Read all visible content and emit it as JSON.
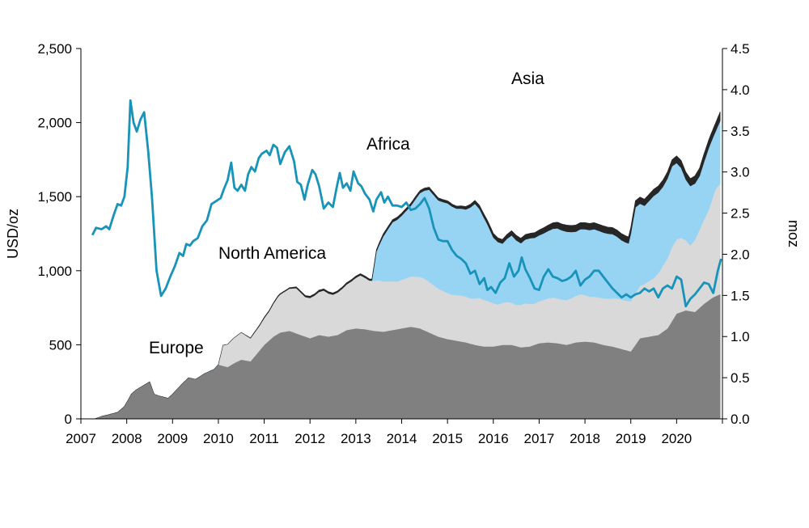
{
  "chart_data": {
    "type": "area",
    "xlabel": "",
    "x_ticks": [
      "2007",
      "2008",
      "2009",
      "2010",
      "2011",
      "2012",
      "2013",
      "2014",
      "2015",
      "2016",
      "2017",
      "2018",
      "2019",
      "2020"
    ],
    "xlim": [
      2007.0,
      2021.0
    ],
    "y_left": {
      "label": "USD/oz",
      "ticks": [
        "0",
        "500",
        "1,000",
        "1,500",
        "2,000",
        "2,500"
      ],
      "lim": [
        0,
        2500
      ]
    },
    "y_right": {
      "label": "moz",
      "ticks": [
        "0.0",
        "0.5",
        "1.0",
        "1.5",
        "2.0",
        "2.5",
        "3.0",
        "3.5",
        "4.0",
        "4.5"
      ],
      "lim": [
        0,
        4.5
      ]
    },
    "colors": {
      "europe": "#808080",
      "north_america": "#d9d9d9",
      "asia": "#97d4f4",
      "africa": "#262626",
      "price": "#1893b9"
    },
    "annotations": [
      "Europe",
      "North America",
      "Asia",
      "Africa"
    ],
    "stack_series": [
      {
        "name": "Europe",
        "color": "#808080",
        "y_axis": "right",
        "x": [
          2007.3,
          2007.45,
          2007.6,
          2007.8,
          2007.95,
          2008.1,
          2008.2,
          2008.35,
          2008.5,
          2008.6,
          2008.7,
          2008.9,
          2009.0,
          2009.2,
          2009.35,
          2009.5,
          2009.7,
          2009.9,
          2010.0,
          2010.2,
          2010.35,
          2010.5,
          2010.7,
          2010.85,
          2011.0,
          2011.2,
          2011.35,
          2011.55,
          2011.7,
          2011.9,
          2012.0,
          2012.2,
          2012.4,
          2012.6,
          2012.8,
          2013.0,
          2013.2,
          2013.4,
          2013.6,
          2013.8,
          2014.0,
          2014.2,
          2014.4,
          2014.6,
          2014.8,
          2015.0,
          2015.2,
          2015.4,
          2015.6,
          2015.8,
          2016.0,
          2016.2,
          2016.4,
          2016.6,
          2016.8,
          2017.0,
          2017.2,
          2017.4,
          2017.6,
          2017.8,
          2018.0,
          2018.2,
          2018.4,
          2018.6,
          2018.8,
          2019.0,
          2019.2,
          2019.4,
          2019.6,
          2019.8,
          2020.0,
          2020.2,
          2020.4,
          2020.6,
          2020.8,
          2020.97
        ],
        "y": [
          0.0,
          0.03,
          0.05,
          0.08,
          0.15,
          0.3,
          0.35,
          0.4,
          0.45,
          0.3,
          0.28,
          0.25,
          0.3,
          0.42,
          0.5,
          0.48,
          0.55,
          0.6,
          0.66,
          0.63,
          0.68,
          0.72,
          0.7,
          0.8,
          0.9,
          1.0,
          1.05,
          1.07,
          1.04,
          1.0,
          0.98,
          1.02,
          1.0,
          1.02,
          1.08,
          1.1,
          1.09,
          1.07,
          1.06,
          1.08,
          1.1,
          1.12,
          1.1,
          1.05,
          1.0,
          0.97,
          0.95,
          0.93,
          0.9,
          0.88,
          0.88,
          0.9,
          0.9,
          0.87,
          0.88,
          0.92,
          0.93,
          0.92,
          0.9,
          0.93,
          0.94,
          0.93,
          0.9,
          0.88,
          0.85,
          0.82,
          0.98,
          1.0,
          1.02,
          1.1,
          1.28,
          1.32,
          1.3,
          1.4,
          1.48,
          1.52
        ]
      },
      {
        "name": "North America",
        "color": "#d9d9d9",
        "y_axis": "right",
        "x": [
          2010.0,
          2010.1,
          2010.3,
          2010.5,
          2010.7,
          2010.9,
          2011.1,
          2011.3,
          2011.5,
          2011.7,
          2011.9,
          2012.1,
          2012.3,
          2012.5,
          2012.7,
          2012.9,
          2013.1,
          2013.3,
          2013.5,
          2013.7,
          2013.9,
          2014.1,
          2014.3,
          2014.5,
          2014.7,
          2014.9,
          2015.1,
          2015.3,
          2015.5,
          2015.7,
          2015.9,
          2016.1,
          2016.3,
          2016.5,
          2016.7,
          2016.9,
          2017.1,
          2017.3,
          2017.5,
          2017.7,
          2017.9,
          2018.1,
          2018.3,
          2018.5,
          2018.7,
          2018.9,
          2019.1,
          2019.3,
          2019.5,
          2019.7,
          2019.9,
          2020.1,
          2020.3,
          2020.5,
          2020.7,
          2020.85,
          2020.97
        ],
        "y": [
          0.0,
          0.25,
          0.3,
          0.33,
          0.28,
          0.3,
          0.35,
          0.45,
          0.5,
          0.55,
          0.48,
          0.5,
          0.55,
          0.5,
          0.53,
          0.58,
          0.65,
          0.6,
          0.62,
          0.6,
          0.58,
          0.6,
          0.62,
          0.63,
          0.6,
          0.57,
          0.55,
          0.56,
          0.55,
          0.58,
          0.55,
          0.5,
          0.52,
          0.5,
          0.53,
          0.5,
          0.52,
          0.55,
          0.54,
          0.55,
          0.58,
          0.55,
          0.56,
          0.57,
          0.6,
          0.6,
          0.62,
          0.65,
          0.7,
          0.8,
          0.9,
          0.9,
          0.8,
          0.95,
          1.1,
          1.3,
          1.35
        ]
      },
      {
        "name": "Asia",
        "color": "#97d4f4",
        "y_axis": "right",
        "x": [
          2013.35,
          2013.45,
          2013.6,
          2013.8,
          2014.0,
          2014.2,
          2014.4,
          2014.6,
          2014.8,
          2015.0,
          2015.2,
          2015.4,
          2015.6,
          2015.7,
          2015.85,
          2016.0,
          2016.2,
          2016.4,
          2016.6,
          2016.8,
          2017.0,
          2017.2,
          2017.4,
          2017.6,
          2017.8,
          2018.0,
          2018.2,
          2018.4,
          2018.6,
          2018.8,
          2018.95,
          2019.1,
          2019.3,
          2019.5,
          2019.7,
          2019.9,
          2020.0,
          2020.1,
          2020.2,
          2020.3,
          2020.5,
          2020.7,
          2020.85,
          2020.97
        ],
        "y": [
          0.0,
          0.35,
          0.55,
          0.72,
          0.78,
          0.86,
          1.02,
          1.12,
          1.07,
          1.09,
          1.05,
          1.06,
          1.15,
          1.08,
          0.95,
          0.8,
          0.72,
          0.82,
          0.75,
          0.8,
          0.8,
          0.82,
          0.85,
          0.83,
          0.78,
          0.8,
          0.82,
          0.8,
          0.78,
          0.72,
          0.7,
          1.05,
          0.95,
          1.0,
          0.96,
          0.98,
          0.93,
          0.85,
          0.74,
          0.72,
          0.65,
          0.75,
          0.7,
          0.78
        ]
      },
      {
        "name": "Africa",
        "color": "#262626",
        "y_axis": "right",
        "x": [
          2007.3,
          2008.5,
          2010.0,
          2010.5,
          2011.0,
          2011.5,
          2012.0,
          2012.5,
          2013.0,
          2013.35,
          2013.6,
          2014.0,
          2014.6,
          2015.2,
          2015.6,
          2015.9,
          2016.2,
          2016.5,
          2016.8,
          2017.2,
          2017.6,
          2018.0,
          2018.5,
          2018.9,
          2019.1,
          2019.3,
          2019.6,
          2019.9,
          2020.1,
          2020.3,
          2020.6,
          2020.8,
          2020.97
        ],
        "y": [
          0.0,
          0.0,
          0.0,
          0.0,
          0.01,
          0.01,
          0.02,
          0.02,
          0.02,
          0.02,
          0.03,
          0.03,
          0.03,
          0.03,
          0.04,
          0.05,
          0.05,
          0.06,
          0.06,
          0.07,
          0.08,
          0.08,
          0.08,
          0.08,
          0.08,
          0.08,
          0.08,
          0.08,
          0.09,
          0.09,
          0.1,
          0.1,
          0.11
        ]
      }
    ],
    "price_series": {
      "name": "",
      "color": "#1893b9",
      "y_axis": "left",
      "x": [
        2007.25,
        2007.33,
        2007.45,
        2007.55,
        2007.62,
        2007.72,
        2007.8,
        2007.88,
        2007.95,
        2008.02,
        2008.08,
        2008.15,
        2008.22,
        2008.3,
        2008.38,
        2008.47,
        2008.55,
        2008.65,
        2008.75,
        2008.85,
        2008.95,
        2009.05,
        2009.15,
        2009.23,
        2009.3,
        2009.38,
        2009.45,
        2009.55,
        2009.65,
        2009.75,
        2009.85,
        2009.95,
        2010.05,
        2010.12,
        2010.2,
        2010.28,
        2010.35,
        2010.42,
        2010.5,
        2010.58,
        2010.65,
        2010.72,
        2010.8,
        2010.88,
        2010.95,
        2011.05,
        2011.12,
        2011.2,
        2011.28,
        2011.35,
        2011.45,
        2011.55,
        2011.65,
        2011.72,
        2011.8,
        2011.88,
        2011.95,
        2012.05,
        2012.12,
        2012.2,
        2012.3,
        2012.4,
        2012.5,
        2012.58,
        2012.65,
        2012.72,
        2012.8,
        2012.88,
        2012.95,
        2013.05,
        2013.12,
        2013.2,
        2013.3,
        2013.38,
        2013.45,
        2013.55,
        2013.62,
        2013.7,
        2013.8,
        2013.9,
        2014.0,
        2014.1,
        2014.2,
        2014.3,
        2014.4,
        2014.5,
        2014.6,
        2014.7,
        2014.8,
        2014.9,
        2015.0,
        2015.1,
        2015.2,
        2015.3,
        2015.4,
        2015.5,
        2015.6,
        2015.7,
        2015.8,
        2015.87,
        2015.95,
        2016.05,
        2016.15,
        2016.25,
        2016.35,
        2016.45,
        2016.55,
        2016.62,
        2016.7,
        2016.8,
        2016.9,
        2017.0,
        2017.1,
        2017.2,
        2017.3,
        2017.4,
        2017.5,
        2017.6,
        2017.7,
        2017.8,
        2017.9,
        2018.0,
        2018.1,
        2018.2,
        2018.3,
        2018.4,
        2018.5,
        2018.6,
        2018.7,
        2018.8,
        2018.9,
        2019.0,
        2019.1,
        2019.2,
        2019.3,
        2019.4,
        2019.5,
        2019.6,
        2019.7,
        2019.8,
        2019.9,
        2020.0,
        2020.1,
        2020.2,
        2020.3,
        2020.4,
        2020.5,
        2020.6,
        2020.7,
        2020.8,
        2020.9,
        2020.97
      ],
      "y": [
        1240,
        1290,
        1280,
        1300,
        1280,
        1380,
        1450,
        1440,
        1500,
        1700,
        2150,
        2000,
        1940,
        2020,
        2070,
        1800,
        1500,
        1000,
        830,
        880,
        960,
        1030,
        1120,
        1100,
        1180,
        1170,
        1200,
        1220,
        1300,
        1340,
        1450,
        1470,
        1490,
        1550,
        1610,
        1730,
        1560,
        1540,
        1580,
        1540,
        1650,
        1700,
        1670,
        1760,
        1790,
        1810,
        1780,
        1850,
        1830,
        1720,
        1800,
        1840,
        1740,
        1600,
        1580,
        1480,
        1580,
        1680,
        1650,
        1570,
        1420,
        1460,
        1430,
        1560,
        1660,
        1560,
        1590,
        1540,
        1670,
        1590,
        1570,
        1520,
        1480,
        1400,
        1480,
        1530,
        1460,
        1500,
        1440,
        1440,
        1430,
        1460,
        1410,
        1420,
        1450,
        1490,
        1420,
        1290,
        1210,
        1200,
        1200,
        1140,
        1100,
        1080,
        1050,
        980,
        1000,
        910,
        950,
        870,
        890,
        850,
        920,
        950,
        1050,
        960,
        1000,
        1090,
        1010,
        950,
        880,
        870,
        960,
        1010,
        960,
        950,
        930,
        940,
        960,
        1000,
        900,
        940,
        960,
        1000,
        1000,
        960,
        920,
        880,
        850,
        820,
        840,
        820,
        840,
        850,
        880,
        860,
        880,
        820,
        880,
        900,
        880,
        960,
        940,
        760,
        810,
        840,
        880,
        920,
        910,
        850,
        1000,
        1080
      ]
    }
  }
}
